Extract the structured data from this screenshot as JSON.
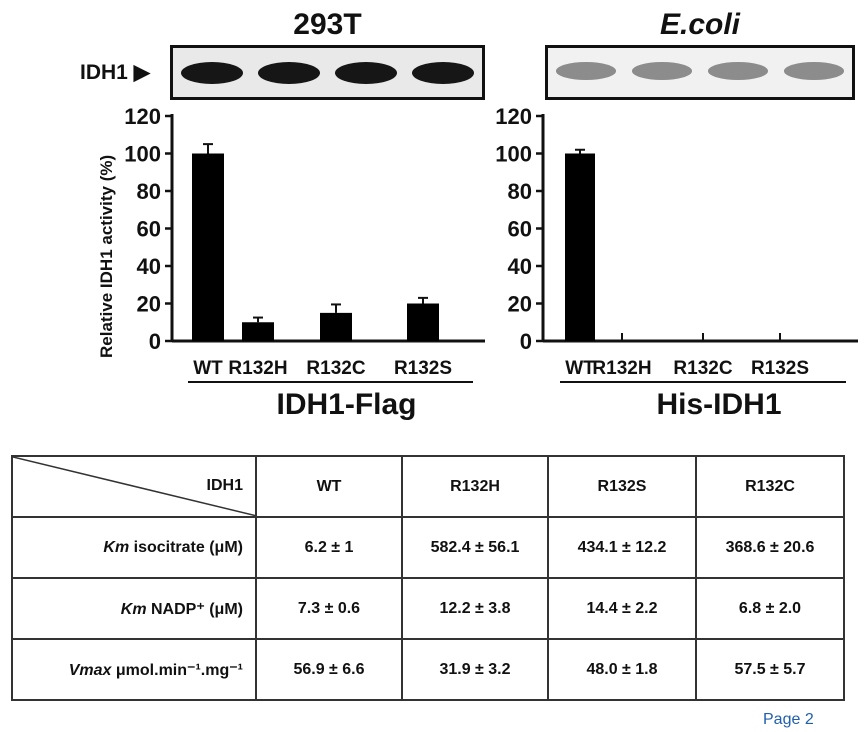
{
  "panels": [
    {
      "title": "293T",
      "title_italic": false,
      "band_label": "IDH1",
      "group_label": "IDH1-Flag",
      "band_color": "#0b0b0b",
      "band_bg": "#e9e9e9"
    },
    {
      "title": "E.coli",
      "title_italic": true,
      "band_label": "",
      "group_label": "His-IDH1",
      "band_color": "#6a6a6a",
      "band_bg": "#f1f1f1"
    }
  ],
  "chart_data": [
    {
      "type": "bar",
      "title": "293T",
      "ylabel": "Relative IDH1 activity (%)",
      "xlabel": "IDH1-Flag",
      "categories": [
        "WT",
        "R132H",
        "R132C",
        "R132S"
      ],
      "values": [
        100,
        10,
        15,
        20
      ],
      "errors": [
        5,
        2.5,
        4.5,
        3
      ],
      "ylim": [
        0,
        120
      ],
      "yticks": [
        0,
        20,
        40,
        60,
        80,
        100,
        120
      ],
      "bar_color": "#000000"
    },
    {
      "type": "bar",
      "title": "E.coli",
      "ylabel": "",
      "xlabel": "His-IDH1",
      "categories": [
        "WT",
        "R132H",
        "R132C",
        "R132S"
      ],
      "values": [
        100,
        0,
        0,
        0
      ],
      "errors": [
        2,
        0,
        0,
        0
      ],
      "ylim": [
        0,
        120
      ],
      "yticks": [
        0,
        20,
        40,
        60,
        80,
        100,
        120
      ],
      "bar_color": "#000000"
    }
  ],
  "table": {
    "corner_label": "IDH1",
    "headers": [
      "WT",
      "R132H",
      "R132S",
      "R132C"
    ],
    "rows": [
      {
        "label_em": "Km",
        "label_rest": " isocitrate (μM)",
        "cells": [
          "6.2 ± 1",
          "582.4 ± 56.1",
          "434.1 ± 12.2",
          "368.6 ± 20.6"
        ]
      },
      {
        "label_em": "Km",
        "label_rest": " NADP⁺ (μM)",
        "cells": [
          "7.3 ± 0.6",
          "12.2 ± 3.8",
          "14.4 ± 2.2",
          "6.8 ± 2.0"
        ]
      },
      {
        "label_em": "Vmax",
        "label_rest": " μmol.min⁻¹.mg⁻¹",
        "cells": [
          "56.9 ± 6.6",
          "31.9 ± 3.2",
          "48.0 ± 1.8",
          "57.5 ± 5.7"
        ]
      }
    ]
  },
  "footer": {
    "page_label": "Page 2"
  }
}
